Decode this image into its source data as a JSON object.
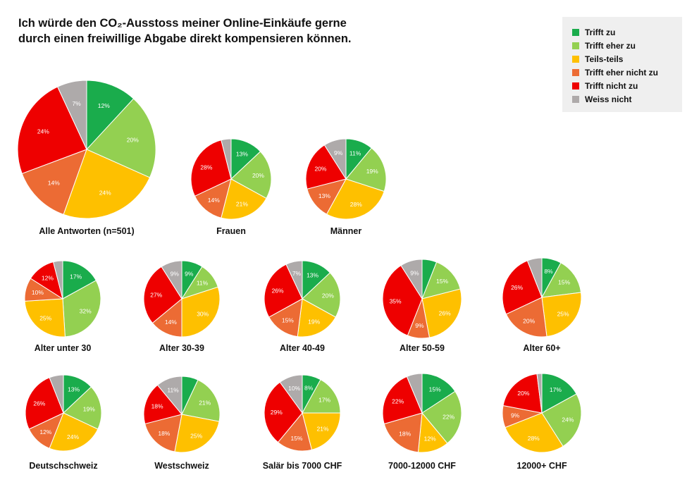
{
  "title_lines": [
    "Ich würde den CO₂-Ausstoss meiner Online-Einkäufe gerne",
    "durch einen freiwillige Abgabe direkt kompensieren können."
  ],
  "legend": [
    {
      "name": "Trifft zu",
      "color": "#1aac4c"
    },
    {
      "name": "Trifft eher zu",
      "color": "#93d051"
    },
    {
      "name": "Teils-teils",
      "color": "#fec000"
    },
    {
      "name": "Trifft eher nicht zu",
      "color": "#ec6b34"
    },
    {
      "name": "Trifft nicht zu",
      "color": "#ee0000"
    },
    {
      "name": "Weiss nicht",
      "color": "#aeaaaa"
    }
  ],
  "chart_data": [
    {
      "type": "pie",
      "label": "Alle Antworten (n=501)",
      "values": [
        12,
        20,
        24,
        14,
        24,
        7
      ],
      "labels": [
        "12%",
        "20%",
        "24%",
        "14%",
        "24%",
        "7%"
      ]
    },
    {
      "type": "pie",
      "label": "Frauen",
      "values": [
        13,
        20,
        21,
        14,
        28,
        4
      ],
      "labels": [
        "13%",
        "20%",
        "21%",
        "14%",
        "28%",
        ""
      ]
    },
    {
      "type": "pie",
      "label": "Männer",
      "values": [
        11,
        19,
        28,
        13,
        20,
        9
      ],
      "labels": [
        "11%",
        "19%",
        "28%",
        "13%",
        "20%",
        "9%"
      ]
    },
    {
      "type": "pie",
      "label": "Alter unter 30",
      "values": [
        17,
        32,
        25,
        10,
        12,
        4
      ],
      "labels": [
        "17%",
        "32%",
        "25%",
        "10%",
        "12%",
        ""
      ]
    },
    {
      "type": "pie",
      "label": "Alter 30-39",
      "values": [
        9,
        11,
        30,
        14,
        27,
        9
      ],
      "labels": [
        "9%",
        "11%",
        "30%",
        "14%",
        "27%",
        "9%"
      ]
    },
    {
      "type": "pie",
      "label": "Alter 40-49",
      "values": [
        13,
        20,
        19,
        15,
        26,
        7
      ],
      "labels": [
        "13%",
        "20%",
        "19%",
        "15%",
        "26%",
        "7%"
      ]
    },
    {
      "type": "pie",
      "label": "Alter 50-59",
      "values": [
        6,
        15,
        26,
        9,
        35,
        9
      ],
      "labels": [
        "",
        "15%",
        "26%",
        "9%",
        "35%",
        "9%"
      ]
    },
    {
      "type": "pie",
      "label": "Alter 60+",
      "values": [
        8,
        15,
        25,
        20,
        26,
        6
      ],
      "labels": [
        "8%",
        "15%",
        "25%",
        "20%",
        "26%",
        ""
      ]
    },
    {
      "type": "pie",
      "label": "Deutschschweiz",
      "values": [
        13,
        19,
        24,
        12,
        26,
        6
      ],
      "labels": [
        "13%",
        "19%",
        "24%",
        "12%",
        "26%",
        ""
      ]
    },
    {
      "type": "pie",
      "label": "Westschweiz",
      "values": [
        7,
        21,
        25,
        18,
        18,
        11
      ],
      "labels": [
        "",
        "21%",
        "25%",
        "18%",
        "18%",
        "11%"
      ]
    },
    {
      "type": "pie",
      "label": "Salär bis 7000 CHF",
      "values": [
        8,
        17,
        21,
        15,
        29,
        10
      ],
      "labels": [
        "8%",
        "17%",
        "21%",
        "15%",
        "29%",
        "10%"
      ]
    },
    {
      "type": "pie",
      "label": "7000-12000 CHF",
      "values": [
        15,
        22,
        12,
        18,
        22,
        6
      ],
      "labels": [
        "15%",
        "22%",
        "12%",
        "18%",
        "22%",
        ""
      ]
    },
    {
      "type": "pie",
      "label": "12000+ CHF",
      "values": [
        17,
        24,
        28,
        9,
        20,
        2
      ],
      "labels": [
        "17%",
        "24%",
        "28%",
        "9%",
        "20%",
        ""
      ]
    }
  ]
}
